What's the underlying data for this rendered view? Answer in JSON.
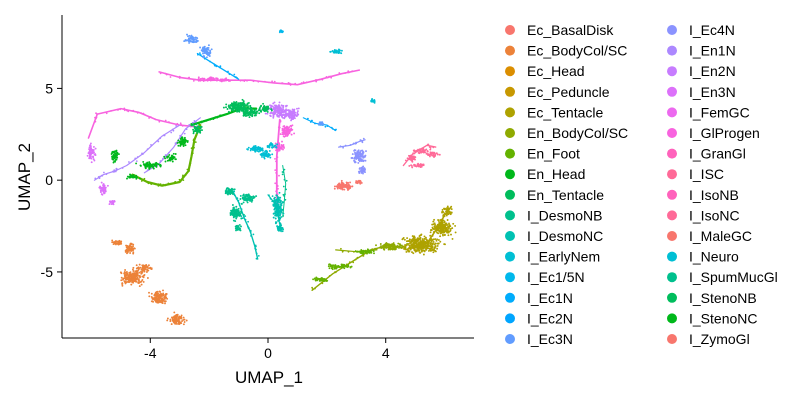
{
  "chart_data": {
    "type": "scatter",
    "xlabel": "UMAP_1",
    "ylabel": "UMAP_2",
    "xlim": [
      -7.0,
      7.0
    ],
    "ylim": [
      -8.6,
      9.0
    ],
    "x_ticks": [
      -4,
      0,
      4
    ],
    "y_ticks": [
      -5,
      0,
      5
    ],
    "x_tick_labels": [
      "-4",
      "0",
      "4"
    ],
    "y_tick_labels": [
      "-5",
      "0",
      "5"
    ],
    "grid": false,
    "legend_position": "right",
    "series": [
      {
        "name": "Ec_BasalDisk",
        "color": "#F8766D",
        "points": [
          [
            2.55,
            -0.35,
            0.28,
            0.22
          ],
          [
            3.1,
            -0.1,
            0.15,
            0.15
          ]
        ]
      },
      {
        "name": "Ec_BodyCol/SC",
        "color": "#EC8239",
        "points": [
          [
            -4.6,
            -5.3,
            0.5,
            0.45
          ],
          [
            -4.2,
            -4.8,
            0.3,
            0.25
          ],
          [
            -3.7,
            -6.4,
            0.35,
            0.4
          ],
          [
            -3.1,
            -7.6,
            0.3,
            0.35
          ],
          [
            -4.7,
            -3.7,
            0.2,
            0.35
          ],
          [
            -5.1,
            -3.4,
            0.25,
            0.15
          ]
        ]
      },
      {
        "name": "Ec_Head",
        "color": "#DB8E00",
        "points": []
      },
      {
        "name": "Ec_Peduncle",
        "color": "#C79800",
        "points": []
      },
      {
        "name": "Ec_Tentacle",
        "color": "#AEA200",
        "points": [
          [
            5.2,
            -3.5,
            0.75,
            0.55
          ],
          [
            5.9,
            -2.6,
            0.4,
            0.5
          ],
          [
            6.1,
            -1.7,
            0.2,
            0.25
          ]
        ]
      },
      {
        "name": "En_BodyCol/SC",
        "color": "#8FAA00",
        "points": [
          [
            4.2,
            -3.6,
            0.5,
            0.25
          ]
        ]
      },
      {
        "name": "En_Foot",
        "color": "#64B200",
        "points": [
          [
            3.3,
            -3.9,
            0.4,
            0.15
          ],
          [
            2.4,
            -4.7,
            0.45,
            0.15
          ],
          [
            1.8,
            -5.4,
            0.35,
            0.15
          ]
        ]
      },
      {
        "name": "En_Head",
        "color": "#00B81B",
        "points": []
      },
      {
        "name": "En_Tentacle",
        "color": "#00BD5C",
        "points": []
      },
      {
        "name": "I_DesmoNB",
        "color": "#00C08D",
        "points": []
      },
      {
        "name": "I_DesmoNC",
        "color": "#00C1B2",
        "points": [
          [
            0.35,
            -1.5,
            0.18,
            0.9
          ],
          [
            0.4,
            -2.6,
            0.12,
            0.3
          ]
        ]
      },
      {
        "name": "I_EarlyNem",
        "color": "#00BFD4",
        "points": [
          [
            2.35,
            7.0,
            0.25,
            0.15
          ],
          [
            3.55,
            4.3,
            0.12,
            0.12
          ]
        ]
      },
      {
        "name": "I_Ec1/5N",
        "color": "#00B8EC",
        "points": [
          [
            0.45,
            8.1,
            0.08,
            0.08
          ]
        ]
      },
      {
        "name": "I_Ec1N",
        "color": "#00ACFC",
        "points": []
      },
      {
        "name": "I_Ec2N",
        "color": "#00A5FF",
        "points": []
      },
      {
        "name": "I_Ec3N",
        "color": "#619CFF",
        "points": [
          [
            -2.1,
            7.0,
            0.2,
            0.35
          ],
          [
            -2.6,
            7.7,
            0.25,
            0.25
          ],
          [
            1.8,
            3.1,
            0.1,
            0.1
          ]
        ]
      },
      {
        "name": "I_Ec4N",
        "color": "#8B93FF",
        "points": [
          [
            3.1,
            1.3,
            0.25,
            0.45
          ],
          [
            3.2,
            0.55,
            0.18,
            0.25
          ]
        ]
      },
      {
        "name": "I_En1N",
        "color": "#AC88FF",
        "points": []
      },
      {
        "name": "I_En2N",
        "color": "#C77CFF",
        "points": [
          [
            0.35,
            3.8,
            0.4,
            0.45
          ],
          [
            0.8,
            3.6,
            0.3,
            0.35
          ]
        ]
      },
      {
        "name": "I_En3N",
        "color": "#DC71FA",
        "points": [
          [
            -6.0,
            1.5,
            0.15,
            0.5
          ],
          [
            -5.6,
            -0.5,
            0.15,
            0.4
          ],
          [
            -5.3,
            -1.2,
            0.12,
            0.15
          ]
        ]
      },
      {
        "name": "I_FemGC",
        "color": "#EC69EF",
        "points": []
      },
      {
        "name": "I_GlProgen",
        "color": "#F863DF",
        "points": [
          [
            -2.0,
            5.5,
            0.4,
            0.12
          ],
          [
            -1.5,
            5.45,
            0.3,
            0.1
          ],
          [
            0.65,
            2.7,
            0.25,
            0.35
          ],
          [
            0.4,
            1.8,
            0.2,
            0.3
          ]
        ]
      },
      {
        "name": "I_GranGl",
        "color": "#FF62BC",
        "points": []
      },
      {
        "name": "I_ISC",
        "color": "#FF6A98",
        "points": [
          [
            5.2,
            1.6,
            0.35,
            0.15
          ],
          [
            5.6,
            1.4,
            0.25,
            0.15
          ],
          [
            5.1,
            0.8,
            0.3,
            0.12
          ],
          [
            4.9,
            1.2,
            0.15,
            0.25
          ]
        ]
      },
      {
        "name": "I_IsoNB",
        "color": "#FF62BC",
        "points": []
      },
      {
        "name": "I_IsoNC",
        "color": "#FF6A98",
        "points": []
      },
      {
        "name": "I_MaleGC",
        "color": "#F8766D",
        "points": []
      },
      {
        "name": "I_Neuro",
        "color": "#00BFD4",
        "points": [
          [
            -0.35,
            1.7,
            0.35,
            0.2
          ],
          [
            -0.1,
            1.4,
            0.25,
            0.25
          ],
          [
            0.15,
            1.9,
            0.2,
            0.15
          ]
        ]
      },
      {
        "name": "I_SpumMucGl",
        "color": "#00C08D",
        "points": [
          [
            -1.3,
            -0.6,
            0.2,
            0.25
          ],
          [
            -0.7,
            -1.0,
            0.3,
            0.3
          ],
          [
            -1.1,
            -1.8,
            0.25,
            0.4
          ],
          [
            -1.0,
            -2.6,
            0.12,
            0.2
          ]
        ]
      },
      {
        "name": "I_StenoNB",
        "color": "#00BD5C",
        "points": [
          [
            -1.0,
            4.0,
            0.5,
            0.35
          ],
          [
            -0.6,
            3.7,
            0.35,
            0.3
          ],
          [
            -0.1,
            3.9,
            0.25,
            0.25
          ],
          [
            -2.4,
            2.8,
            0.2,
            0.3
          ]
        ]
      },
      {
        "name": "I_StenoNC",
        "color": "#00B81B",
        "points": [
          [
            -5.2,
            1.3,
            0.15,
            0.4
          ],
          [
            -4.6,
            0.2,
            0.25,
            0.15
          ],
          [
            -4.0,
            0.8,
            0.4,
            0.2
          ],
          [
            -3.3,
            1.2,
            0.25,
            0.2
          ],
          [
            -2.9,
            2.1,
            0.2,
            0.3
          ]
        ]
      },
      {
        "name": "I_ZymoGl",
        "color": "#F8766D",
        "points": [
          [
            2.6,
            -0.3,
            0.25,
            0.25
          ]
        ]
      }
    ],
    "curves": [
      {
        "color": "#F863DF",
        "stroke": 1.6,
        "points": [
          [
            -6.1,
            2.3
          ],
          [
            -5.8,
            3.6
          ],
          [
            -5.0,
            3.9
          ],
          [
            -4.4,
            3.7
          ],
          [
            -3.8,
            3.3
          ],
          [
            -3.0,
            3.0
          ],
          [
            -2.4,
            2.9
          ]
        ]
      },
      {
        "color": "#F863DF",
        "stroke": 1.6,
        "points": [
          [
            -3.7,
            5.9
          ],
          [
            -3.0,
            5.6
          ],
          [
            -2.3,
            5.45
          ],
          [
            -1.4,
            5.45
          ],
          [
            -0.6,
            5.45
          ],
          [
            0.2,
            5.3
          ],
          [
            1.0,
            5.2
          ],
          [
            1.8,
            5.5
          ],
          [
            2.5,
            5.8
          ],
          [
            3.1,
            6.0
          ]
        ]
      },
      {
        "color": "#F863DF",
        "stroke": 1.8,
        "points": [
          [
            0.4,
            3.3
          ],
          [
            0.3,
            1.3
          ],
          [
            0.3,
            0.2
          ],
          [
            0.3,
            -0.8
          ],
          [
            0.35,
            -1.6
          ]
        ]
      },
      {
        "color": "#AC88FF",
        "stroke": 1.2,
        "points": [
          [
            -3.0,
            3.0
          ],
          [
            -3.6,
            2.4
          ],
          [
            -4.2,
            1.5
          ],
          [
            -4.8,
            0.8
          ],
          [
            -5.2,
            0.5
          ],
          [
            -5.6,
            0.3
          ],
          [
            -5.9,
            0.0
          ]
        ]
      },
      {
        "color": "#AC88FF",
        "stroke": 1.2,
        "points": [
          [
            -2.3,
            3.4
          ],
          [
            -2.8,
            2.8
          ],
          [
            -3.2,
            1.8
          ],
          [
            -3.7,
            0.9
          ],
          [
            -4.2,
            0.4
          ]
        ]
      },
      {
        "color": "#64B200",
        "stroke": 2.2,
        "points": [
          [
            -4.6,
            0.3
          ],
          [
            -4.1,
            -0.1
          ],
          [
            -3.6,
            -0.3
          ],
          [
            -3.0,
            -0.1
          ],
          [
            -2.7,
            0.5
          ],
          [
            -2.6,
            1.3
          ],
          [
            -2.5,
            2.2
          ],
          [
            -2.3,
            3.0
          ]
        ]
      },
      {
        "color": "#00B81B",
        "stroke": 2.2,
        "points": [
          [
            -2.6,
            3.0
          ],
          [
            -2.0,
            3.3
          ],
          [
            -1.4,
            3.6
          ],
          [
            -0.9,
            3.9
          ],
          [
            -0.4,
            3.9
          ]
        ]
      },
      {
        "color": "#00C1B2",
        "stroke": 1.4,
        "points": [
          [
            -1.2,
            -0.6
          ],
          [
            -1.0,
            -1.2
          ],
          [
            -0.8,
            -2.1
          ],
          [
            -0.6,
            -2.8
          ],
          [
            -0.45,
            -3.6
          ],
          [
            -0.35,
            -4.3
          ]
        ]
      },
      {
        "color": "#00C1B2",
        "stroke": 1.2,
        "points": [
          [
            0.0,
            -0.8
          ],
          [
            0.2,
            -1.2
          ],
          [
            0.35,
            -2.0
          ],
          [
            0.45,
            -2.8
          ]
        ]
      },
      {
        "color": "#00ACFC",
        "stroke": 1.3,
        "points": [
          [
            -2.4,
            6.9
          ],
          [
            -2.0,
            6.5
          ],
          [
            -1.5,
            6.0
          ],
          [
            -1.0,
            5.5
          ]
        ]
      },
      {
        "color": "#00ACFC",
        "stroke": 1.1,
        "points": [
          [
            1.2,
            3.4
          ],
          [
            1.6,
            3.1
          ],
          [
            2.0,
            3.0
          ],
          [
            2.3,
            2.7
          ]
        ]
      },
      {
        "color": "#00C08D",
        "stroke": 1.0,
        "points": [
          [
            0.5,
            0.8
          ],
          [
            0.6,
            -0.2
          ],
          [
            0.55,
            -1.2
          ],
          [
            0.5,
            -2.0
          ]
        ]
      },
      {
        "color": "#8B93FF",
        "stroke": 1.2,
        "points": [
          [
            2.4,
            1.8
          ],
          [
            2.8,
            1.9
          ],
          [
            3.1,
            2.1
          ],
          [
            3.3,
            2.2
          ]
        ]
      },
      {
        "color": "#8FAA00",
        "stroke": 1.4,
        "points": [
          [
            1.5,
            -6.0
          ],
          [
            2.2,
            -5.1
          ],
          [
            2.9,
            -4.4
          ],
          [
            3.5,
            -3.8
          ],
          [
            4.2,
            -3.5
          ]
        ]
      },
      {
        "color": "#8FAA00",
        "stroke": 1.2,
        "points": [
          [
            2.3,
            -3.8
          ],
          [
            3.0,
            -3.9
          ],
          [
            3.7,
            -3.8
          ]
        ]
      },
      {
        "color": "#AEA200",
        "stroke": 1.6,
        "points": [
          [
            5.5,
            -3.2
          ],
          [
            5.8,
            -2.5
          ],
          [
            6.0,
            -1.9
          ],
          [
            6.2,
            -1.5
          ]
        ]
      },
      {
        "color": "#FF6A98",
        "stroke": 1.4,
        "points": [
          [
            4.6,
            0.8
          ],
          [
            4.9,
            1.4
          ],
          [
            5.4,
            1.9
          ],
          [
            5.7,
            1.8
          ]
        ]
      }
    ]
  }
}
